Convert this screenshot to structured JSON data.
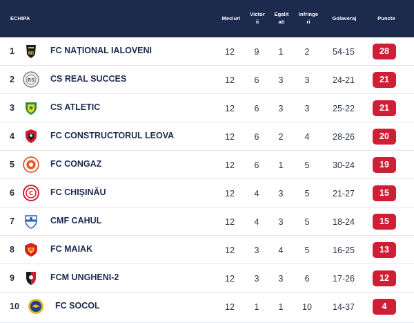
{
  "header": {
    "team": "ECHIPA",
    "played": "Meciuri",
    "wins_line1": "Victor",
    "wins_line2": "ii",
    "draws_line1": "Egalit",
    "draws_line2": "ati",
    "losses_line1": "Infringe",
    "losses_line2": "ri",
    "goal_diff": "Golaveraj",
    "points": "Puncte"
  },
  "colors": {
    "header_bg": "#1c2a4e",
    "points_badge": "#cf1f36",
    "text": "#1f2a44"
  },
  "rows": [
    {
      "pos": "1",
      "team": "FC NAȚIONAL IALOVENI",
      "played": "12",
      "wins": "9",
      "draws": "1",
      "losses": "2",
      "goals": "54-15",
      "points": "28",
      "logo": "shield-logo-icon"
    },
    {
      "pos": "2",
      "team": "CS REAL SUCCES",
      "played": "12",
      "wins": "6",
      "draws": "3",
      "losses": "3",
      "goals": "24-21",
      "points": "21",
      "logo": "round-crest-icon"
    },
    {
      "pos": "3",
      "team": "CS ATLETIC",
      "played": "12",
      "wins": "6",
      "draws": "3",
      "losses": "3",
      "goals": "25-22",
      "points": "21",
      "logo": "shield-logo-icon"
    },
    {
      "pos": "4",
      "team": "FC CONSTRUCTORUL LEOVA",
      "played": "12",
      "wins": "6",
      "draws": "2",
      "losses": "4",
      "goals": "28-26",
      "points": "20",
      "logo": "shield-logo-icon"
    },
    {
      "pos": "5",
      "team": "FC CONGAZ",
      "played": "12",
      "wins": "6",
      "draws": "1",
      "losses": "5",
      "goals": "30-24",
      "points": "19",
      "logo": "round-crest-icon"
    },
    {
      "pos": "6",
      "team": "FC CHIȘINĂU",
      "played": "12",
      "wins": "4",
      "draws": "3",
      "losses": "5",
      "goals": "21-27",
      "points": "15",
      "logo": "round-crest-icon"
    },
    {
      "pos": "7",
      "team": "CMF CAHUL",
      "played": "12",
      "wins": "4",
      "draws": "3",
      "losses": "5",
      "goals": "18-24",
      "points": "15",
      "logo": "shield-logo-icon"
    },
    {
      "pos": "8",
      "team": "FC MAIAK",
      "played": "12",
      "wins": "3",
      "draws": "4",
      "losses": "5",
      "goals": "16-25",
      "points": "13",
      "logo": "shield-logo-icon"
    },
    {
      "pos": "9",
      "team": "FCM UNGHENI-2",
      "played": "12",
      "wins": "3",
      "draws": "3",
      "losses": "6",
      "goals": "17-26",
      "points": "12",
      "logo": "shield-logo-icon"
    },
    {
      "pos": "10",
      "team": "FC SOCOL",
      "played": "12",
      "wins": "1",
      "draws": "1",
      "losses": "10",
      "goals": "14-37",
      "points": "4",
      "logo": "round-crest-icon"
    }
  ]
}
